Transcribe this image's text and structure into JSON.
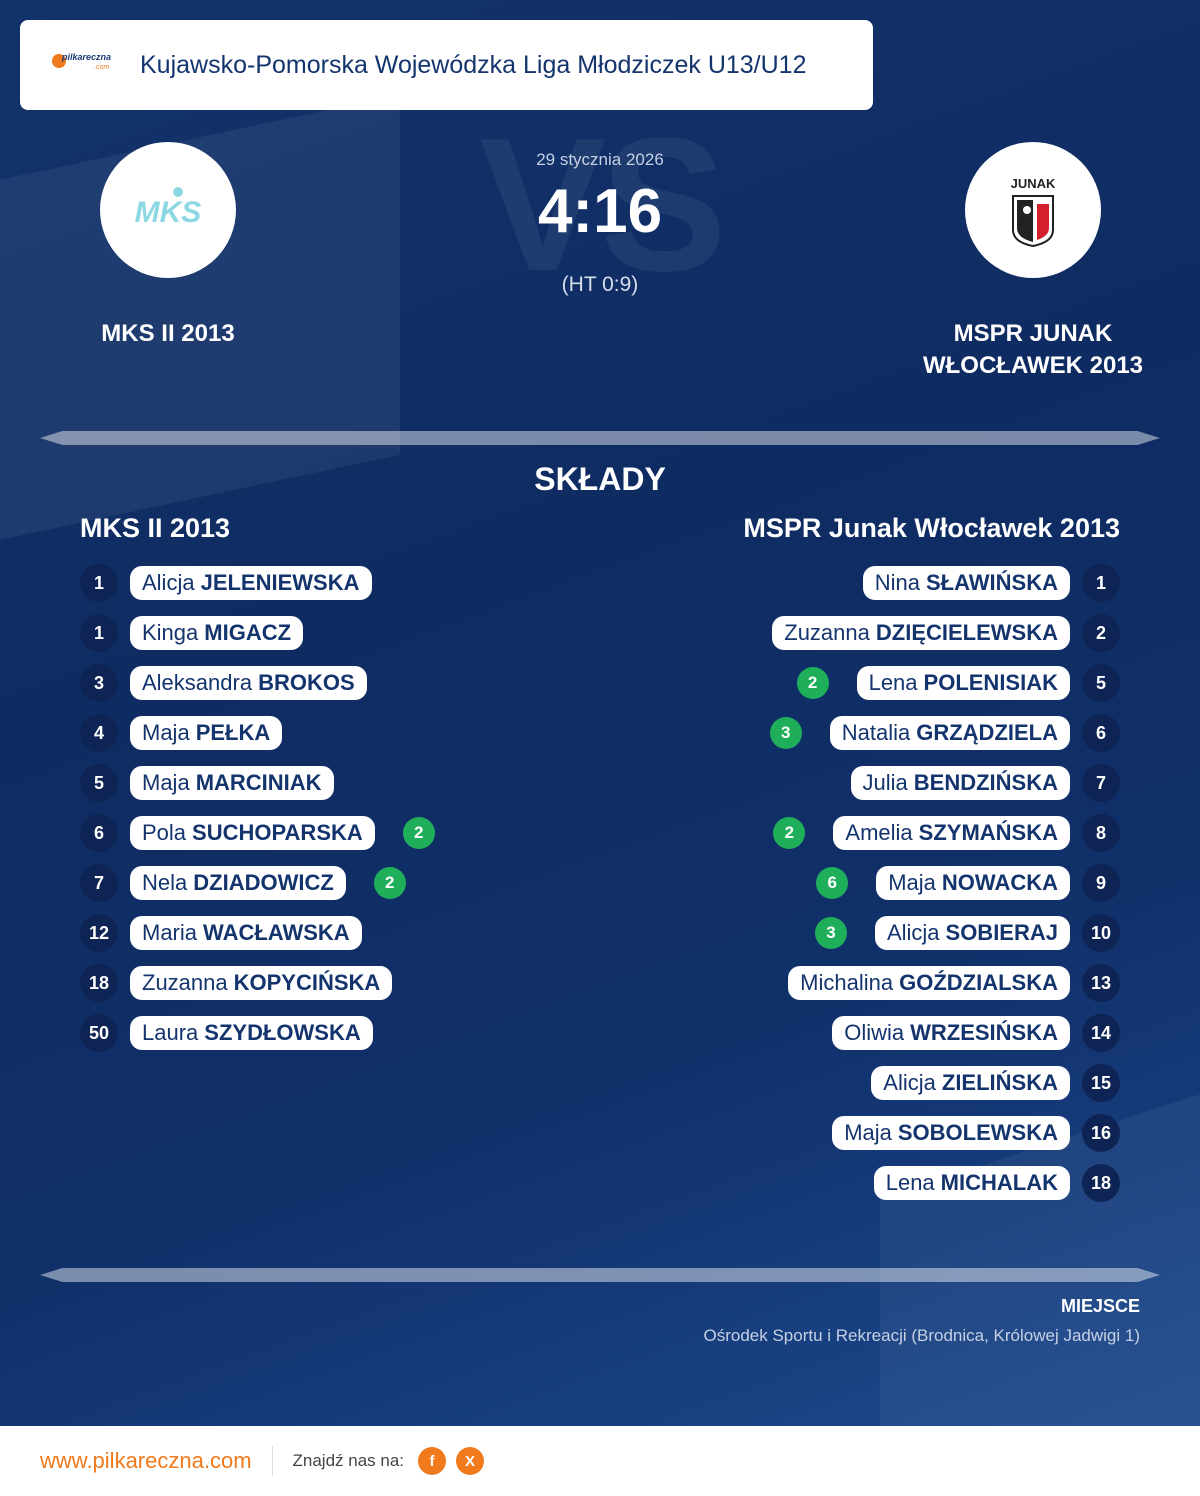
{
  "header": {
    "logo_text": "pilkareczna",
    "logo_sub": ".com",
    "league": "Kujawsko-Pomorska Wojewódzka Liga Młodziczek U13/U12"
  },
  "match": {
    "date": "29 stycznia 2026",
    "score": "4:16",
    "halftime": "(HT 0:9)",
    "vs_watermark": "VS",
    "home_team": "MKS II 2013",
    "away_team": "MSPR JUNAK WŁOCŁAWEK 2013",
    "home_logo_text": "MKS",
    "away_logo_text": "JUNAK"
  },
  "lineups": {
    "title": "SKŁADY",
    "home": {
      "title": "MKS II 2013",
      "players": [
        {
          "number": "1",
          "first": "Alicja",
          "last": "JELENIEWSKA",
          "goals": ""
        },
        {
          "number": "1",
          "first": "Kinga",
          "last": "MIGACZ",
          "goals": ""
        },
        {
          "number": "3",
          "first": "Aleksandra",
          "last": "BROKOS",
          "goals": ""
        },
        {
          "number": "4",
          "first": "Maja",
          "last": "PEŁKA",
          "goals": ""
        },
        {
          "number": "5",
          "first": "Maja",
          "last": "MARCINIAK",
          "goals": ""
        },
        {
          "number": "6",
          "first": "Pola",
          "last": "SUCHOPARSKA",
          "goals": "2"
        },
        {
          "number": "7",
          "first": "Nela",
          "last": "DZIADOWICZ",
          "goals": "2"
        },
        {
          "number": "12",
          "first": "Maria",
          "last": "WACŁAWSKA",
          "goals": ""
        },
        {
          "number": "18",
          "first": "Zuzanna",
          "last": "KOPYCIŃSKA",
          "goals": ""
        },
        {
          "number": "50",
          "first": "Laura",
          "last": "SZYDŁOWSKA",
          "goals": ""
        }
      ]
    },
    "away": {
      "title": "MSPR Junak Włocławek 2013",
      "players": [
        {
          "number": "1",
          "first": "Nina",
          "last": "SŁAWIŃSKA",
          "goals": ""
        },
        {
          "number": "2",
          "first": "Zuzanna",
          "last": "DZIĘCIELEWSKA",
          "goals": ""
        },
        {
          "number": "5",
          "first": "Lena",
          "last": "POLENISIAK",
          "goals": "2"
        },
        {
          "number": "6",
          "first": "Natalia",
          "last": "GRZĄDZIELA",
          "goals": "3"
        },
        {
          "number": "7",
          "first": "Julia",
          "last": "BENDZIŃSKA",
          "goals": ""
        },
        {
          "number": "8",
          "first": "Amelia",
          "last": "SZYMAŃSKA",
          "goals": "2"
        },
        {
          "number": "9",
          "first": "Maja",
          "last": "NOWACKA",
          "goals": "6"
        },
        {
          "number": "10",
          "first": "Alicja",
          "last": "SOBIERAJ",
          "goals": "3"
        },
        {
          "number": "13",
          "first": "Michalina",
          "last": "GOŹDZIALSKA",
          "goals": ""
        },
        {
          "number": "14",
          "first": "Oliwia",
          "last": "WRZESIŃSKA",
          "goals": ""
        },
        {
          "number": "15",
          "first": "Alicja",
          "last": "ZIELIŃSKA",
          "goals": ""
        },
        {
          "number": "16",
          "first": "Maja",
          "last": "SOBOLEWSKA",
          "goals": ""
        },
        {
          "number": "18",
          "first": "Lena",
          "last": "MICHALAK",
          "goals": ""
        }
      ]
    }
  },
  "venue": {
    "label": "MIEJSCE",
    "value": "Ośrodek Sportu i Rekreacji (Brodnica, Królowej Jadwigi 1)"
  },
  "footer": {
    "url": "www.pilkareczna.com",
    "find_us": "Znajdź nas na:",
    "social": [
      {
        "icon": "facebook-icon",
        "glyph": "f"
      },
      {
        "icon": "x-icon",
        "glyph": "X"
      }
    ]
  },
  "colors": {
    "background": "#13336c",
    "accent": "#f07a1c",
    "goal_badge": "#1fae5a",
    "number_badge": "#0d2454"
  }
}
